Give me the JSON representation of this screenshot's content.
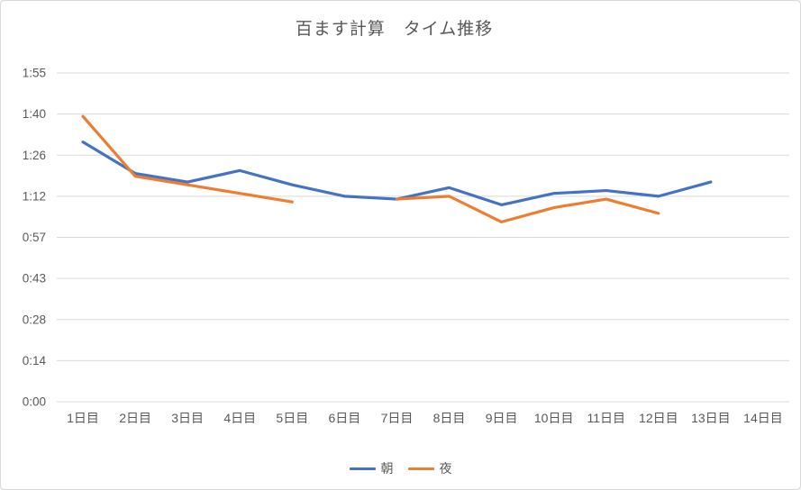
{
  "window": {
    "background": "#ffffff",
    "border_color": "#D9D9D9"
  },
  "chart_data": {
    "type": "line",
    "title": "百ます計算　タイム推移",
    "xlabel": "",
    "ylabel": "",
    "grid": true,
    "gridline_color": "#D9D9D9",
    "text_color": "#595959",
    "legend_position": "bottom",
    "y_axis": {
      "unit": "m:ss",
      "min_seconds": 0,
      "max_seconds": 115.2,
      "major_unit_seconds": 14.4,
      "tick_labels_bottom_to_top": [
        "0:00",
        "0:14",
        "0:28",
        "0:43",
        "0:57",
        "1:12",
        "1:26",
        "1:40",
        "1:55"
      ]
    },
    "categories": [
      "1日目",
      "2日目",
      "3日目",
      "4日目",
      "5日目",
      "6日目",
      "7日目",
      "8日目",
      "9日目",
      "10日目",
      "11日目",
      "12日目",
      "13日目",
      "14日目"
    ],
    "series": [
      {
        "name": "朝",
        "color": "#4472C4",
        "values_seconds": [
          91,
          80,
          77,
          81,
          76,
          72,
          71,
          75,
          69,
          73,
          74,
          72,
          77,
          null
        ],
        "values_display": [
          "1:31",
          "1:20",
          "1:17",
          "1:21",
          "1:16",
          "1:12",
          "1:11",
          "1:15",
          "1:09",
          "1:13",
          "1:14",
          "1:12",
          "1:17",
          null
        ]
      },
      {
        "name": "夜",
        "color": "#ED7D31",
        "values_seconds": [
          100,
          79,
          76,
          73,
          70,
          null,
          71,
          72,
          63,
          68,
          71,
          66,
          null,
          null
        ],
        "values_display": [
          "1:40",
          "1:19",
          "1:16",
          "1:13",
          "1:10",
          null,
          "1:11",
          "1:12",
          "1:03",
          "1:08",
          "1:11",
          "1:06",
          null,
          null
        ]
      }
    ]
  }
}
